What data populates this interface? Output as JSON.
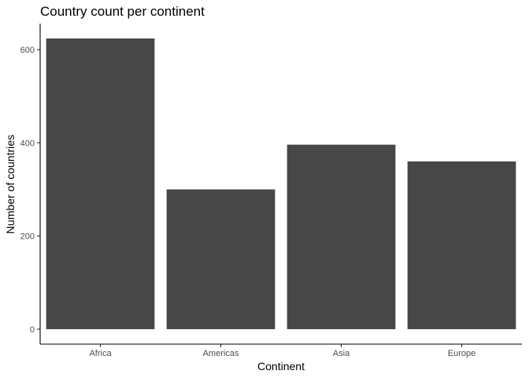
{
  "chart_data": {
    "type": "bar",
    "title": "Country count per continent",
    "xlabel": "Continent",
    "ylabel": "Number of countries",
    "categories": [
      "Africa",
      "Americas",
      "Asia",
      "Europe"
    ],
    "values": [
      624,
      300,
      396,
      360
    ],
    "ylim": [
      0,
      660
    ],
    "yticks": [
      0,
      200,
      400,
      600
    ],
    "grid": false,
    "legend": "none",
    "bar_color": "#474747",
    "axis_color": "#000000",
    "tick_label_color": "#4d4d4d"
  }
}
